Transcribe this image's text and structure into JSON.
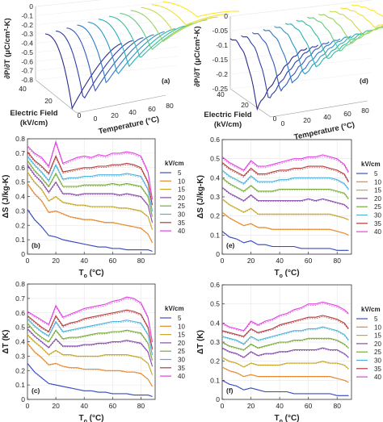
{
  "colors": {
    "5": "#3b4cc0",
    "10": "#e8882a",
    "15": "#c8a82a",
    "20": "#8a4caa",
    "25": "#7aaa3a",
    "30": "#4fb0d8",
    "35": "#b03a3a",
    "40": "#e040e0"
  },
  "chart_data": [
    {
      "type": "surface3d",
      "panel_label": "(a)",
      "zlabel": "∂P/∂T (μC/cm²-K)",
      "ylabel_line1": "Electric Field",
      "ylabel_line2": "(kV/cm)",
      "xlabel": "Temperature (°C)",
      "zticks": [
        "-0.8",
        "-0.7",
        "-0.6",
        "-0.5",
        "-0.4",
        "-0.3",
        "-0.2",
        "-0.1",
        "0"
      ],
      "field_ticks": [
        "40",
        "20",
        "0"
      ],
      "temp_ticks": [
        "0",
        "20",
        "40",
        "60",
        "80"
      ],
      "zlim": [
        -0.8,
        0
      ],
      "description": "waterfall of curves vs temperature for fields 0–40 kV/cm"
    },
    {
      "type": "surface3d",
      "panel_label": "(d)",
      "zlabel": "∂P/∂T (μC/cm²-K)",
      "ylabel_line1": "Electric Field",
      "ylabel_line2": "(kV/cm)",
      "xlabel": "Temperature (°C)",
      "zticks": [
        "-0.25",
        "-0.2",
        "-0.15",
        "-0.1",
        "-0.05",
        "0"
      ],
      "field_ticks": [
        "40",
        "20",
        "0"
      ],
      "temp_ticks": [
        "0",
        "20",
        "40",
        "60",
        "80"
      ],
      "zlim": [
        -0.25,
        0
      ]
    },
    {
      "type": "line",
      "panel_label": "(b)",
      "ylabel": "ΔS (J/kg-K)",
      "xlabel": "T",
      "xlabel_sub": "o",
      "xlabel_unit": " (°C)",
      "xlim": [
        0,
        90
      ],
      "ylim": [
        0,
        0.8
      ],
      "xticks": [
        0,
        20,
        40,
        60,
        80
      ],
      "yticks": [
        0,
        0.1,
        0.2,
        0.3,
        0.4,
        0.5,
        0.6,
        0.7,
        0.8
      ],
      "legend_title": "kV/cm",
      "legend_entries": [
        "5",
        "10",
        "15",
        "20",
        "25",
        "30",
        "35",
        "40"
      ],
      "x": [
        0,
        5,
        10,
        15,
        20,
        25,
        30,
        35,
        40,
        45,
        50,
        55,
        60,
        65,
        70,
        75,
        80,
        85,
        88
      ],
      "series": [
        {
          "name": "5",
          "values": [
            0.31,
            0.24,
            0.19,
            0.13,
            0.12,
            0.1,
            0.09,
            0.08,
            0.07,
            0.06,
            0.05,
            0.05,
            0.04,
            0.04,
            0.03,
            0.03,
            0.03,
            0.03,
            0.02
          ]
        },
        {
          "name": "10",
          "values": [
            0.49,
            0.42,
            0.37,
            0.29,
            0.3,
            0.28,
            0.26,
            0.25,
            0.24,
            0.24,
            0.23,
            0.22,
            0.22,
            0.21,
            0.2,
            0.19,
            0.18,
            0.14,
            0.08
          ]
        },
        {
          "name": "15",
          "values": [
            0.57,
            0.5,
            0.45,
            0.37,
            0.4,
            0.36,
            0.35,
            0.34,
            0.34,
            0.33,
            0.33,
            0.33,
            0.33,
            0.32,
            0.32,
            0.31,
            0.3,
            0.26,
            0.17
          ]
        },
        {
          "name": "20",
          "values": [
            0.62,
            0.55,
            0.5,
            0.43,
            0.5,
            0.42,
            0.42,
            0.41,
            0.42,
            0.42,
            0.42,
            0.42,
            0.42,
            0.41,
            0.42,
            0.41,
            0.4,
            0.34,
            0.22
          ]
        },
        {
          "name": "25",
          "values": [
            0.65,
            0.58,
            0.53,
            0.47,
            0.56,
            0.47,
            0.47,
            0.47,
            0.48,
            0.48,
            0.48,
            0.48,
            0.49,
            0.48,
            0.49,
            0.48,
            0.47,
            0.4,
            0.26
          ]
        },
        {
          "name": "30",
          "values": [
            0.68,
            0.62,
            0.57,
            0.51,
            0.62,
            0.52,
            0.53,
            0.53,
            0.54,
            0.54,
            0.55,
            0.55,
            0.55,
            0.55,
            0.56,
            0.55,
            0.54,
            0.45,
            0.3
          ]
        },
        {
          "name": "35",
          "values": [
            0.71,
            0.65,
            0.61,
            0.56,
            0.68,
            0.57,
            0.58,
            0.59,
            0.6,
            0.6,
            0.61,
            0.61,
            0.62,
            0.62,
            0.63,
            0.62,
            0.6,
            0.5,
            0.34
          ]
        },
        {
          "name": "40",
          "values": [
            0.75,
            0.7,
            0.67,
            0.61,
            0.78,
            0.63,
            0.65,
            0.67,
            0.68,
            0.67,
            0.69,
            0.68,
            0.7,
            0.7,
            0.71,
            0.7,
            0.68,
            0.57,
            0.38
          ]
        }
      ]
    },
    {
      "type": "line",
      "panel_label": "(e)",
      "ylabel": "ΔS (J/kg-K)",
      "xlabel": "T",
      "xlabel_sub": "o",
      "xlabel_unit": " (°C)",
      "xlim": [
        0,
        90
      ],
      "ylim": [
        0,
        0.6
      ],
      "xticks": [
        0,
        20,
        40,
        60,
        80
      ],
      "yticks": [
        0,
        0.1,
        0.2,
        0.3,
        0.4,
        0.5,
        0.6
      ],
      "legend_title": "kV/cm",
      "legend_entries": [
        "5",
        "10",
        "15",
        "20",
        "25",
        "30",
        "35",
        "40"
      ],
      "x": [
        0,
        5,
        10,
        15,
        20,
        25,
        30,
        35,
        40,
        45,
        50,
        55,
        60,
        65,
        70,
        75,
        80,
        85,
        88
      ],
      "series": [
        {
          "name": "5",
          "values": [
            0.12,
            0.09,
            0.08,
            0.06,
            0.07,
            0.05,
            0.05,
            0.04,
            0.04,
            0.04,
            0.04,
            0.03,
            0.03,
            0.03,
            0.03,
            0.03,
            0.02,
            0.02,
            0.02
          ]
        },
        {
          "name": "10",
          "values": [
            0.22,
            0.19,
            0.17,
            0.15,
            0.16,
            0.14,
            0.14,
            0.13,
            0.13,
            0.13,
            0.13,
            0.13,
            0.13,
            0.13,
            0.13,
            0.13,
            0.12,
            0.11,
            0.1
          ]
        },
        {
          "name": "15",
          "values": [
            0.29,
            0.26,
            0.24,
            0.22,
            0.24,
            0.21,
            0.21,
            0.21,
            0.21,
            0.21,
            0.21,
            0.21,
            0.21,
            0.21,
            0.21,
            0.21,
            0.2,
            0.19,
            0.18
          ]
        },
        {
          "name": "20",
          "values": [
            0.35,
            0.32,
            0.3,
            0.28,
            0.31,
            0.28,
            0.28,
            0.28,
            0.28,
            0.28,
            0.28,
            0.28,
            0.29,
            0.28,
            0.29,
            0.28,
            0.27,
            0.26,
            0.24
          ]
        },
        {
          "name": "25",
          "values": [
            0.4,
            0.37,
            0.35,
            0.33,
            0.36,
            0.33,
            0.33,
            0.33,
            0.34,
            0.34,
            0.34,
            0.34,
            0.34,
            0.34,
            0.34,
            0.34,
            0.33,
            0.32,
            0.29
          ]
        },
        {
          "name": "30",
          "values": [
            0.44,
            0.41,
            0.39,
            0.37,
            0.41,
            0.38,
            0.38,
            0.38,
            0.39,
            0.39,
            0.4,
            0.4,
            0.4,
            0.4,
            0.4,
            0.4,
            0.39,
            0.37,
            0.34
          ]
        },
        {
          "name": "35",
          "values": [
            0.48,
            0.45,
            0.43,
            0.41,
            0.45,
            0.42,
            0.42,
            0.43,
            0.44,
            0.44,
            0.45,
            0.45,
            0.46,
            0.46,
            0.46,
            0.45,
            0.44,
            0.42,
            0.38
          ]
        },
        {
          "name": "40",
          "values": [
            0.51,
            0.48,
            0.46,
            0.44,
            0.49,
            0.46,
            0.46,
            0.47,
            0.48,
            0.49,
            0.5,
            0.5,
            0.51,
            0.51,
            0.52,
            0.51,
            0.5,
            0.47,
            0.43
          ]
        }
      ]
    },
    {
      "type": "line",
      "panel_label": "(c)",
      "ylabel": "ΔT (K)",
      "xlabel": "T",
      "xlabel_sub": "o",
      "xlabel_unit": " (°C)",
      "xlim": [
        0,
        90
      ],
      "ylim": [
        0,
        0.8
      ],
      "xticks": [
        0,
        20,
        40,
        60,
        80
      ],
      "yticks": [
        0,
        0.1,
        0.2,
        0.3,
        0.4,
        0.5,
        0.6,
        0.7,
        0.8
      ],
      "legend_title": "kV/cm",
      "legend_entries": [
        "5",
        "10",
        "15",
        "20",
        "25",
        "30",
        "35",
        "40"
      ],
      "x": [
        0,
        5,
        10,
        15,
        20,
        25,
        30,
        35,
        40,
        45,
        50,
        55,
        60,
        65,
        70,
        75,
        80,
        85,
        88
      ],
      "series": [
        {
          "name": "5",
          "values": [
            0.25,
            0.19,
            0.15,
            0.11,
            0.1,
            0.09,
            0.08,
            0.07,
            0.06,
            0.06,
            0.05,
            0.05,
            0.04,
            0.04,
            0.04,
            0.03,
            0.03,
            0.03,
            0.02
          ]
        },
        {
          "name": "10",
          "values": [
            0.39,
            0.33,
            0.29,
            0.24,
            0.25,
            0.23,
            0.22,
            0.22,
            0.21,
            0.21,
            0.21,
            0.2,
            0.2,
            0.2,
            0.19,
            0.19,
            0.18,
            0.14,
            0.09
          ]
        },
        {
          "name": "15",
          "values": [
            0.45,
            0.4,
            0.36,
            0.31,
            0.34,
            0.31,
            0.31,
            0.3,
            0.3,
            0.3,
            0.3,
            0.31,
            0.31,
            0.31,
            0.31,
            0.3,
            0.29,
            0.25,
            0.17
          ]
        },
        {
          "name": "20",
          "values": [
            0.49,
            0.44,
            0.4,
            0.36,
            0.42,
            0.37,
            0.37,
            0.37,
            0.38,
            0.38,
            0.39,
            0.39,
            0.4,
            0.4,
            0.41,
            0.4,
            0.39,
            0.33,
            0.23
          ]
        },
        {
          "name": "25",
          "values": [
            0.53,
            0.47,
            0.43,
            0.4,
            0.48,
            0.42,
            0.43,
            0.43,
            0.44,
            0.45,
            0.46,
            0.46,
            0.47,
            0.47,
            0.48,
            0.47,
            0.46,
            0.39,
            0.27
          ]
        },
        {
          "name": "30",
          "values": [
            0.56,
            0.51,
            0.47,
            0.44,
            0.54,
            0.47,
            0.48,
            0.49,
            0.5,
            0.51,
            0.52,
            0.53,
            0.54,
            0.54,
            0.55,
            0.54,
            0.53,
            0.45,
            0.31
          ]
        },
        {
          "name": "35",
          "values": [
            0.58,
            0.54,
            0.5,
            0.47,
            0.58,
            0.51,
            0.53,
            0.54,
            0.56,
            0.57,
            0.58,
            0.59,
            0.6,
            0.61,
            0.62,
            0.61,
            0.59,
            0.5,
            0.35
          ]
        },
        {
          "name": "40",
          "values": [
            0.61,
            0.58,
            0.55,
            0.52,
            0.65,
            0.57,
            0.59,
            0.61,
            0.63,
            0.64,
            0.65,
            0.66,
            0.68,
            0.69,
            0.71,
            0.7,
            0.67,
            0.57,
            0.4
          ]
        }
      ]
    },
    {
      "type": "line",
      "panel_label": "(f)",
      "ylabel": "ΔT (K)",
      "xlabel": "T",
      "xlabel_sub": "o",
      "xlabel_unit": " (°C)",
      "xlim": [
        0,
        90
      ],
      "ylim": [
        0,
        0.6
      ],
      "xticks": [
        0,
        20,
        40,
        60,
        80
      ],
      "yticks": [
        0,
        0.1,
        0.2,
        0.3,
        0.4,
        0.5,
        0.6
      ],
      "legend_title": "kV/cm",
      "legend_entries": [
        "5",
        "10",
        "15",
        "20",
        "25",
        "30",
        "35",
        "40"
      ],
      "x": [
        0,
        5,
        10,
        15,
        20,
        25,
        30,
        35,
        40,
        45,
        50,
        55,
        60,
        65,
        70,
        75,
        80,
        85,
        88
      ],
      "series": [
        {
          "name": "5",
          "values": [
            0.1,
            0.08,
            0.07,
            0.05,
            0.06,
            0.05,
            0.04,
            0.04,
            0.04,
            0.04,
            0.03,
            0.03,
            0.03,
            0.03,
            0.03,
            0.03,
            0.02,
            0.02,
            0.02
          ]
        },
        {
          "name": "10",
          "values": [
            0.17,
            0.15,
            0.14,
            0.12,
            0.13,
            0.12,
            0.12,
            0.12,
            0.12,
            0.12,
            0.12,
            0.12,
            0.12,
            0.12,
            0.12,
            0.12,
            0.11,
            0.1,
            0.09
          ]
        },
        {
          "name": "15",
          "values": [
            0.22,
            0.2,
            0.19,
            0.17,
            0.19,
            0.18,
            0.18,
            0.18,
            0.18,
            0.19,
            0.19,
            0.19,
            0.19,
            0.19,
            0.2,
            0.19,
            0.19,
            0.18,
            0.16
          ]
        },
        {
          "name": "20",
          "values": [
            0.27,
            0.25,
            0.24,
            0.22,
            0.25,
            0.23,
            0.24,
            0.24,
            0.25,
            0.25,
            0.26,
            0.26,
            0.26,
            0.26,
            0.27,
            0.26,
            0.26,
            0.24,
            0.22
          ]
        },
        {
          "name": "25",
          "values": [
            0.3,
            0.28,
            0.27,
            0.26,
            0.29,
            0.27,
            0.28,
            0.29,
            0.3,
            0.3,
            0.31,
            0.31,
            0.32,
            0.32,
            0.32,
            0.32,
            0.31,
            0.29,
            0.27
          ]
        },
        {
          "name": "30",
          "values": [
            0.33,
            0.32,
            0.31,
            0.29,
            0.33,
            0.31,
            0.32,
            0.33,
            0.34,
            0.35,
            0.36,
            0.36,
            0.37,
            0.37,
            0.38,
            0.37,
            0.36,
            0.34,
            0.31
          ]
        },
        {
          "name": "35",
          "values": [
            0.36,
            0.35,
            0.34,
            0.33,
            0.37,
            0.35,
            0.36,
            0.37,
            0.39,
            0.4,
            0.41,
            0.42,
            0.43,
            0.43,
            0.44,
            0.43,
            0.42,
            0.4,
            0.37
          ]
        },
        {
          "name": "40",
          "values": [
            0.4,
            0.38,
            0.37,
            0.36,
            0.41,
            0.39,
            0.41,
            0.42,
            0.44,
            0.45,
            0.47,
            0.48,
            0.5,
            0.5,
            0.51,
            0.5,
            0.49,
            0.47,
            0.45
          ]
        }
      ]
    }
  ]
}
